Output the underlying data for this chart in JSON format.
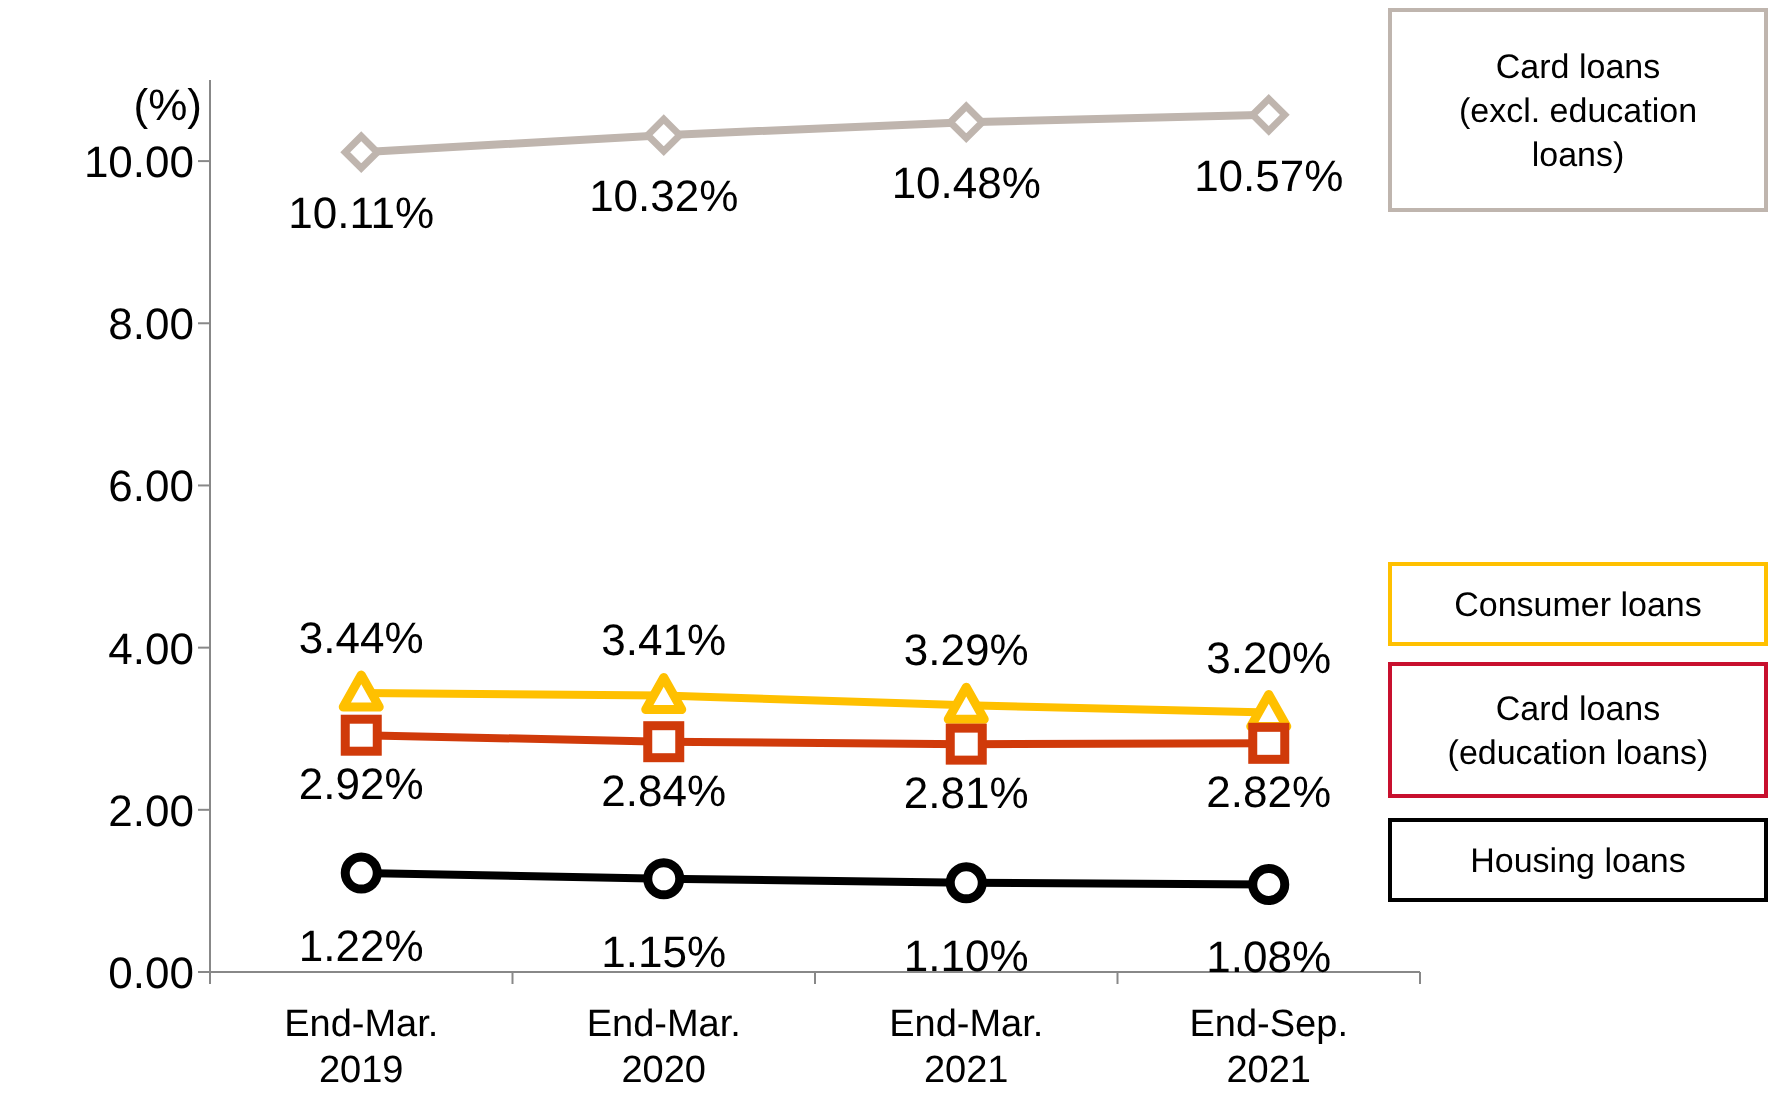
{
  "chart_data": {
    "type": "line",
    "ylabel": "(%)",
    "categories": [
      "End-Mar.\n2019",
      "End-Mar.\n2020",
      "End-Mar.\n2021",
      "End-Sep.\n2021"
    ],
    "ylim": [
      0,
      11
    ],
    "yticks": [
      {
        "value": 0,
        "label": "0.00"
      },
      {
        "value": 2,
        "label": "2.00"
      },
      {
        "value": 4,
        "label": "4.00"
      },
      {
        "value": 6,
        "label": "6.00"
      },
      {
        "value": 8,
        "label": "8.00"
      },
      {
        "value": 10,
        "label": "10.00"
      }
    ],
    "grid": false,
    "legend": "right",
    "series": [
      {
        "name": "Card loans\n(excl. education\nloans)",
        "color": "#bfb5ae",
        "marker": "diamond",
        "values": [
          10.11,
          10.32,
          10.48,
          10.57
        ],
        "value_labels": [
          "10.11%",
          "10.32%",
          "10.48%",
          "10.57%"
        ]
      },
      {
        "name": "Consumer loans",
        "color": "#ffc000",
        "marker": "triangle",
        "values": [
          3.44,
          3.41,
          3.29,
          3.2
        ],
        "value_labels": [
          "3.44%",
          "3.41%",
          "3.29%",
          "3.20%"
        ]
      },
      {
        "name": "Card loans\n(education loans)",
        "color": "#d03a0a",
        "marker": "square",
        "values": [
          2.92,
          2.84,
          2.81,
          2.82
        ],
        "value_labels": [
          "2.92%",
          "2.84%",
          "2.81%",
          "2.82%"
        ]
      },
      {
        "name": "Housing loans",
        "color": "#000000",
        "marker": "circle",
        "values": [
          1.22,
          1.15,
          1.1,
          1.08
        ],
        "value_labels": [
          "1.22%",
          "1.15%",
          "1.10%",
          "1.08%"
        ]
      }
    ]
  }
}
